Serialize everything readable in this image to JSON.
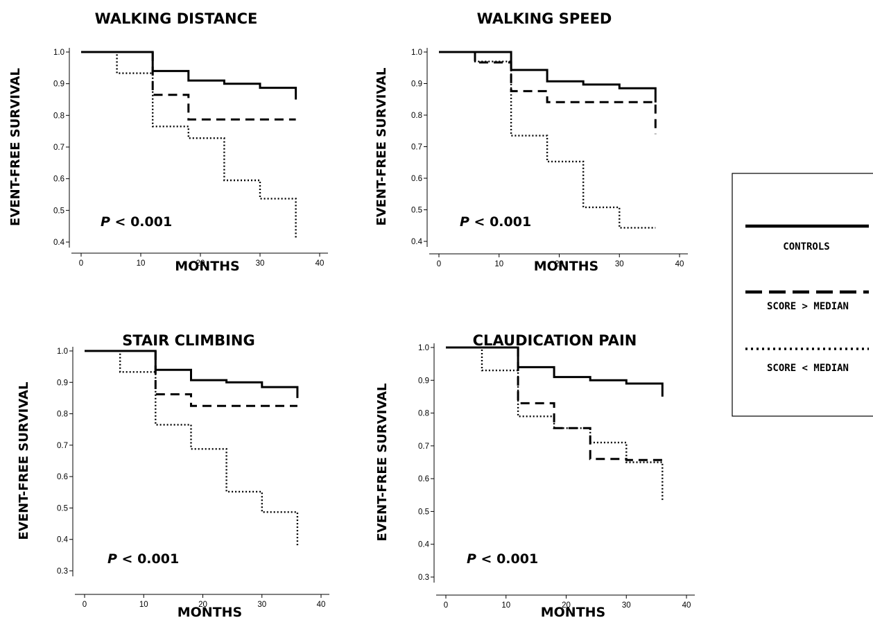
{
  "legend": {
    "items": [
      {
        "label": "CONTROLS",
        "dash": "solid"
      },
      {
        "label": "SCORE > MEDIAN",
        "dash": "dashed"
      },
      {
        "label": "SCORE < MEDIAN",
        "dash": "dotted"
      }
    ]
  },
  "chart_data": [
    {
      "type": "line",
      "title": "WALKING DISTANCE",
      "xlabel": "MONTHS",
      "ylabel": "EVENT-FREE SURVIVAL",
      "annotation": {
        "italic": "P",
        "text": " < 0.001"
      },
      "xlim": [
        0,
        40
      ],
      "ylim": [
        0.4,
        1.0
      ],
      "xticks": [
        0,
        10,
        20,
        30,
        40
      ],
      "yticks": [
        0.4,
        0.5,
        0.6,
        0.7,
        0.8,
        0.9,
        1.0
      ],
      "ytick_labels": [
        "0.4",
        "0.5",
        "0.6",
        "0.7",
        "0.8",
        "0.9",
        "1.0"
      ],
      "series": [
        {
          "style": "solid",
          "x": [
            0,
            12,
            12,
            18,
            18,
            24,
            24,
            30,
            30,
            36,
            36
          ],
          "y": [
            1.0,
            1.0,
            0.94,
            0.94,
            0.91,
            0.91,
            0.9,
            0.9,
            0.887,
            0.887,
            0.85
          ]
        },
        {
          "style": "dashed",
          "x": [
            12,
            12,
            18,
            18,
            36
          ],
          "y": [
            1.0,
            0.865,
            0.865,
            0.787,
            0.787
          ]
        },
        {
          "style": "dotted",
          "x": [
            0,
            6,
            6,
            12,
            12,
            18,
            18,
            24,
            24,
            30,
            30,
            36,
            36
          ],
          "y": [
            1.0,
            1.0,
            0.933,
            0.933,
            0.765,
            0.765,
            0.728,
            0.728,
            0.595,
            0.595,
            0.537,
            0.537,
            0.41
          ]
        }
      ]
    },
    {
      "type": "line",
      "title": "WALKING SPEED",
      "xlabel": "MONTHS",
      "ylabel": "EVENT-FREE SURVIVAL",
      "annotation": {
        "italic": "P",
        "text": " < 0.001"
      },
      "xlim": [
        0,
        40
      ],
      "ylim": [
        0.4,
        1.0
      ],
      "xticks": [
        0,
        10,
        20,
        30,
        40
      ],
      "yticks": [
        0.4,
        0.5,
        0.6,
        0.7,
        0.8,
        0.9,
        1.0
      ],
      "ytick_labels": [
        "0.4",
        "0.5",
        "0.6",
        "0.7",
        "0.8",
        "0.9",
        "1.0"
      ],
      "series": [
        {
          "style": "solid",
          "x": [
            0,
            12,
            12,
            18,
            18,
            24,
            24,
            30,
            30,
            36,
            36
          ],
          "y": [
            1.0,
            1.0,
            0.943,
            0.943,
            0.907,
            0.907,
            0.897,
            0.897,
            0.885,
            0.885,
            0.84
          ]
        },
        {
          "style": "dashed",
          "x": [
            6,
            6,
            12,
            12,
            18,
            18,
            36,
            36
          ],
          "y": [
            1.0,
            0.967,
            0.967,
            0.876,
            0.876,
            0.841,
            0.841,
            0.74
          ]
        },
        {
          "style": "dotted",
          "x": [
            0,
            6,
            6,
            12,
            12,
            18,
            18,
            24,
            24,
            30,
            30,
            36
          ],
          "y": [
            1.0,
            1.0,
            0.97,
            0.97,
            0.735,
            0.735,
            0.653,
            0.653,
            0.508,
            0.508,
            0.443,
            0.443
          ]
        }
      ]
    },
    {
      "type": "line",
      "title": "STAIR CLIMBING",
      "xlabel": "MONTHS",
      "ylabel": "EVENT-FREE SURVIVAL",
      "annotation": {
        "italic": "P",
        "text": " < 0.001"
      },
      "xlim": [
        0,
        40
      ],
      "ylim": [
        0.3,
        1.0
      ],
      "xticks": [
        0,
        10,
        20,
        30,
        40
      ],
      "yticks": [
        0.3,
        0.4,
        0.5,
        0.6,
        0.7,
        0.8,
        0.9,
        1.0
      ],
      "ytick_labels": [
        "0.3",
        "0.4",
        "0.5",
        "0.6",
        "0.7",
        "0.8",
        "0.9",
        "1.0"
      ],
      "series": [
        {
          "style": "solid",
          "x": [
            0,
            12,
            12,
            18,
            18,
            24,
            24,
            30,
            30,
            36,
            36
          ],
          "y": [
            1.0,
            1.0,
            0.94,
            0.94,
            0.907,
            0.907,
            0.9,
            0.9,
            0.885,
            0.885,
            0.85
          ]
        },
        {
          "style": "dashed",
          "x": [
            12,
            12,
            18,
            18,
            36
          ],
          "y": [
            1.0,
            0.862,
            0.862,
            0.825,
            0.825
          ]
        },
        {
          "style": "dotted",
          "x": [
            0,
            6,
            6,
            12,
            12,
            18,
            18,
            24,
            24,
            30,
            30,
            36,
            36
          ],
          "y": [
            1.0,
            1.0,
            0.933,
            0.933,
            0.765,
            0.765,
            0.688,
            0.688,
            0.552,
            0.552,
            0.487,
            0.487,
            0.38
          ]
        }
      ]
    },
    {
      "type": "line",
      "title": "CLAUDICATION PAIN",
      "xlabel": "MONTHS",
      "ylabel": "EVENT-FREE SURVIVAL",
      "annotation": {
        "italic": "P",
        "text": " < 0.001"
      },
      "xlim": [
        0,
        40
      ],
      "ylim": [
        0.3,
        1.0
      ],
      "xticks": [
        0,
        10,
        20,
        30,
        40
      ],
      "yticks": [
        0.3,
        0.4,
        0.5,
        0.6,
        0.7,
        0.8,
        0.9,
        1.0
      ],
      "ytick_labels": [
        "0.3",
        "0.4",
        "0.5",
        "0.6",
        "0.7",
        "0.8",
        "0.9",
        "1.0"
      ],
      "series": [
        {
          "style": "solid",
          "x": [
            0,
            12,
            12,
            18,
            18,
            24,
            24,
            30,
            30,
            36,
            36
          ],
          "y": [
            1.0,
            1.0,
            0.94,
            0.94,
            0.91,
            0.91,
            0.9,
            0.9,
            0.89,
            0.89,
            0.85
          ]
        },
        {
          "style": "dashed",
          "x": [
            12,
            12,
            18,
            18,
            24,
            24,
            30,
            30,
            36
          ],
          "y": [
            1.0,
            0.83,
            0.83,
            0.754,
            0.754,
            0.66,
            0.66,
            0.657,
            0.657
          ]
        },
        {
          "style": "dotted",
          "x": [
            0,
            6,
            6,
            12,
            12,
            18,
            18,
            24,
            24,
            30,
            30,
            36,
            36
          ],
          "y": [
            1.0,
            1.0,
            0.93,
            0.93,
            0.79,
            0.79,
            0.754,
            0.754,
            0.71,
            0.71,
            0.65,
            0.65,
            0.53
          ]
        }
      ]
    }
  ]
}
